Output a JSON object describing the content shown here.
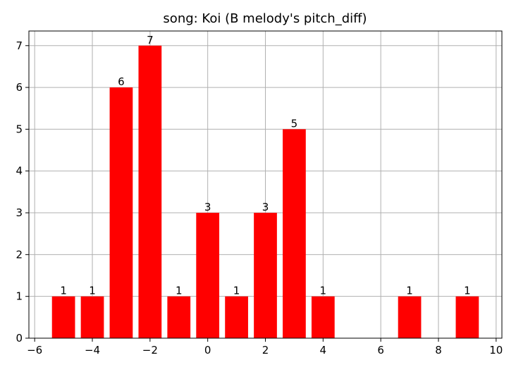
{
  "chart_data": {
    "type": "bar",
    "title": "song: Koi (B melody's pitch_diff)",
    "xlabel": "",
    "ylabel": "",
    "x": [
      -5,
      -4,
      -3,
      -2,
      -1,
      0,
      1,
      2,
      3,
      4,
      7,
      9
    ],
    "values": [
      1,
      1,
      6,
      7,
      1,
      3,
      1,
      3,
      5,
      1,
      1,
      1
    ],
    "data_labels": [
      "1",
      "1",
      "6",
      "7",
      "1",
      "3",
      "1",
      "3",
      "5",
      "1",
      "1",
      "1"
    ],
    "xlim": [
      -6.2,
      10.2
    ],
    "ylim": [
      0,
      7.35
    ],
    "xticks": [
      -6,
      -4,
      -2,
      0,
      2,
      4,
      6,
      8,
      10
    ],
    "xtick_labels": [
      "−6",
      "−4",
      "−2",
      "0",
      "2",
      "4",
      "6",
      "8",
      "10"
    ],
    "yticks": [
      0,
      1,
      2,
      3,
      4,
      5,
      6,
      7
    ],
    "ytick_labels": [
      "0",
      "1",
      "2",
      "3",
      "4",
      "5",
      "6",
      "7"
    ],
    "bar_width": 0.8,
    "bar_color": "#ff0000",
    "grid": true,
    "grid_color": "#b0b0b0"
  }
}
